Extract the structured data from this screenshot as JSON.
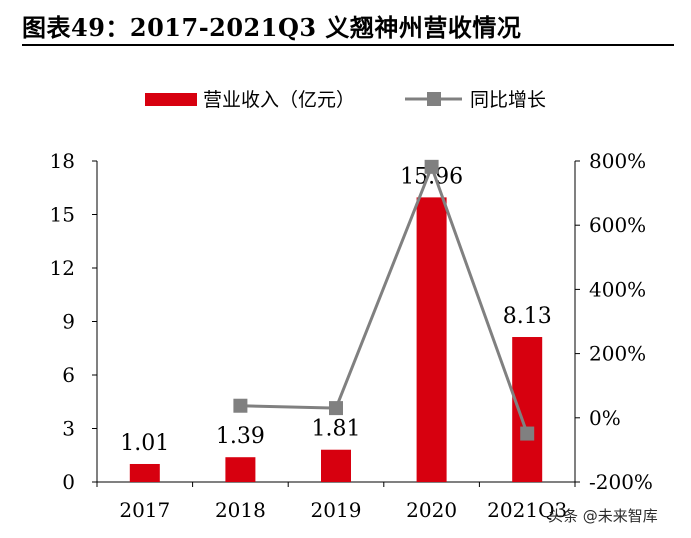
{
  "title": "图表49：2017-2021Q3 义翘神州营收情况",
  "watermark": "头条 @未来智库",
  "chart_data": {
    "type": "bar",
    "categories": [
      "2017",
      "2018",
      "2019",
      "2020",
      "2021Q3"
    ],
    "series": [
      {
        "name": "营业收入（亿元）",
        "kind": "bar",
        "axis": "left",
        "color": "#d7000f",
        "values": [
          1.01,
          1.39,
          1.81,
          15.96,
          8.13
        ],
        "data_labels": [
          "1.01",
          "1.39",
          "1.81",
          "15.96",
          "8.13"
        ]
      },
      {
        "name": "同比增长",
        "kind": "line",
        "axis": "right",
        "color": "#808080",
        "values": [
          null,
          37.6,
          30.2,
          781.8,
          -49.1
        ]
      }
    ],
    "left_axis": {
      "min": 0,
      "max": 18,
      "ticks": [
        "0",
        "3",
        "6",
        "9",
        "12",
        "15",
        "18"
      ]
    },
    "right_axis": {
      "min": -200,
      "max": 800,
      "ticks": [
        "-200%",
        "0%",
        "200%",
        "400%",
        "600%",
        "800%"
      ]
    },
    "legend_position": "top",
    "grid": false
  }
}
